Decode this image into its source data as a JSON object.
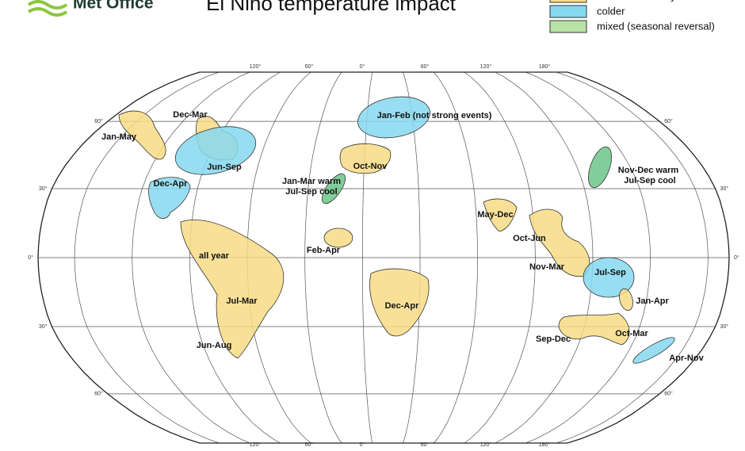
{
  "header": {
    "logo": "Met Office",
    "title": "El Niño temperature impact"
  },
  "legend": [
    {
      "label": "warmer tendency",
      "color": "#f7dc85"
    },
    {
      "label": "colder",
      "color": "#86d8f0"
    },
    {
      "label": "mixed (seasonal reversal)",
      "color": "#b9e3a6"
    }
  ],
  "map": {
    "top_labels": [
      "120°",
      "60°",
      "0°",
      "60°",
      "120°",
      "180°"
    ],
    "bottom_labels": [
      "120°",
      "60°",
      "0°",
      "60°",
      "120°",
      "180°"
    ],
    "left_labels": [
      "60°",
      "30°",
      "0°",
      "30°",
      "60°"
    ],
    "right_labels": [
      "60°",
      "30°",
      "0°",
      "30°",
      "60°"
    ],
    "regions": [
      {
        "color": "#f7dc85",
        "labels": [
          "Jan-May"
        ]
      },
      {
        "color": "#f7dc85",
        "labels": [
          "Dec-Mar"
        ]
      },
      {
        "color": "#86d8f0",
        "labels": [
          "Jun-Sep"
        ]
      },
      {
        "color": "#86d8f0",
        "labels": [
          "Dec-Apr"
        ]
      },
      {
        "color": "#86d8f0",
        "labels": [
          "Jan-Feb (not strong events)"
        ]
      },
      {
        "color": "#f7dc85",
        "labels": [
          "Oct-Nov"
        ]
      },
      {
        "color": "#6cc488",
        "labels": [
          "Jan-Mar warm",
          "Jul-Sep cool"
        ]
      },
      {
        "color": "#6cc488",
        "labels": [
          "Nov-Dec warm",
          "Jul-Sep cool"
        ]
      },
      {
        "color": "#f7dc85",
        "labels": [
          "May-Dec"
        ]
      },
      {
        "color": "#f7dc85",
        "labels": [
          "Oct-Jun",
          "Nov-Mar"
        ]
      },
      {
        "color": "#86d8f0",
        "labels": [
          "Jul-Sep"
        ]
      },
      {
        "color": "#f7dc85",
        "labels": [
          "Jan-Apr"
        ]
      },
      {
        "color": "#f7dc85",
        "labels": [
          "Oct-Mar",
          "Sep-Dec"
        ]
      },
      {
        "color": "#86d8f0",
        "labels": [
          "Apr-Nov"
        ]
      },
      {
        "color": "#f7dc85",
        "labels": [
          "Feb-Apr"
        ]
      },
      {
        "color": "#f7dc85",
        "labels": [
          "all year",
          "Jul-Mar",
          "Jun-Aug"
        ]
      },
      {
        "color": "#f7dc85",
        "labels": [
          "Dec-Apr"
        ]
      }
    ]
  }
}
